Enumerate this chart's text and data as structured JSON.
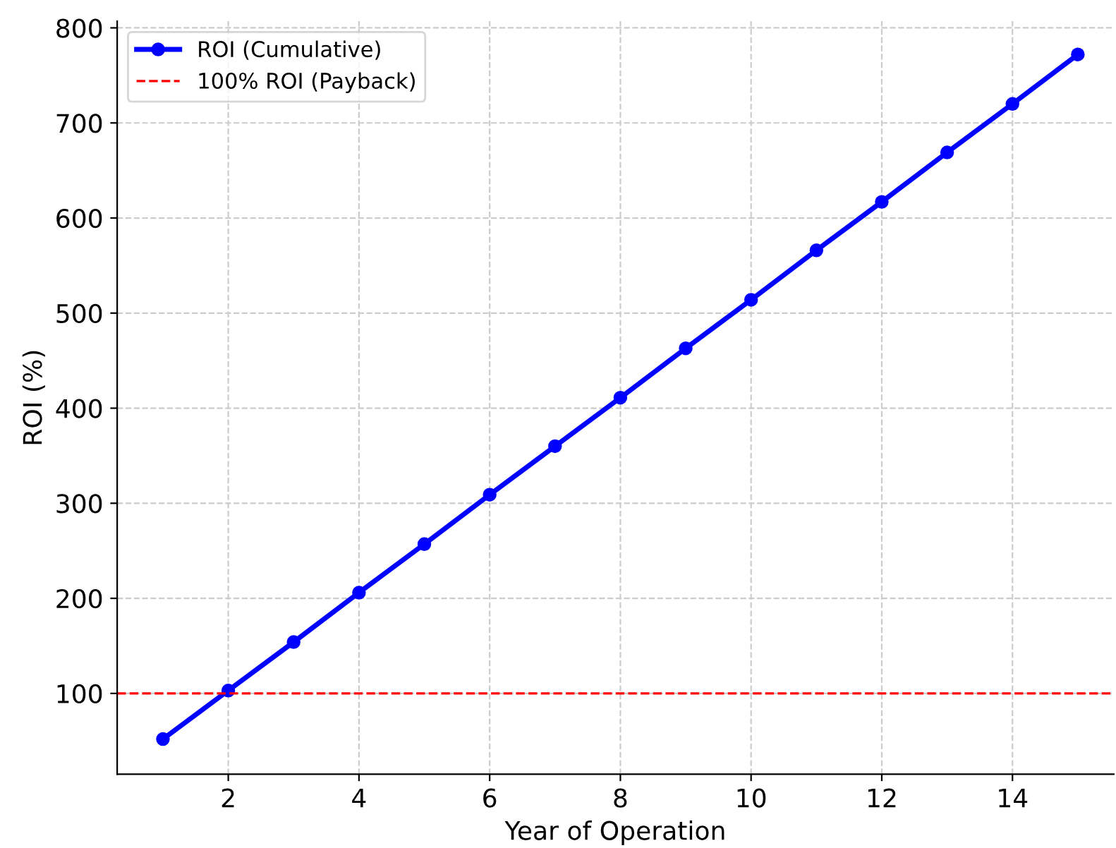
{
  "chart_data": {
    "type": "line",
    "xlabel": "Year of Operation",
    "ylabel": "ROI (%)",
    "x": [
      1,
      2,
      3,
      4,
      5,
      6,
      7,
      8,
      9,
      10,
      11,
      12,
      13,
      14,
      15
    ],
    "series": [
      {
        "name": "ROI (Cumulative)",
        "color": "#0000ff",
        "values": [
          52,
          103,
          154,
          206,
          257,
          309,
          360,
          411,
          463,
          514,
          566,
          617,
          669,
          720,
          772
        ]
      }
    ],
    "marker": "circle",
    "line_style": "solid",
    "ref_lines": [
      {
        "axis": "y",
        "value": 100,
        "label": "100% ROI (Payback)",
        "color": "#ff0000",
        "line_style": "dashed"
      }
    ],
    "xlim": [
      0.3,
      15.55
    ],
    "ylim": [
      15,
      807
    ],
    "xticks": [
      2,
      4,
      6,
      8,
      10,
      12,
      14
    ],
    "yticks": [
      100,
      200,
      300,
      400,
      500,
      600,
      700,
      800
    ],
    "grid": true,
    "legend": "top left"
  }
}
